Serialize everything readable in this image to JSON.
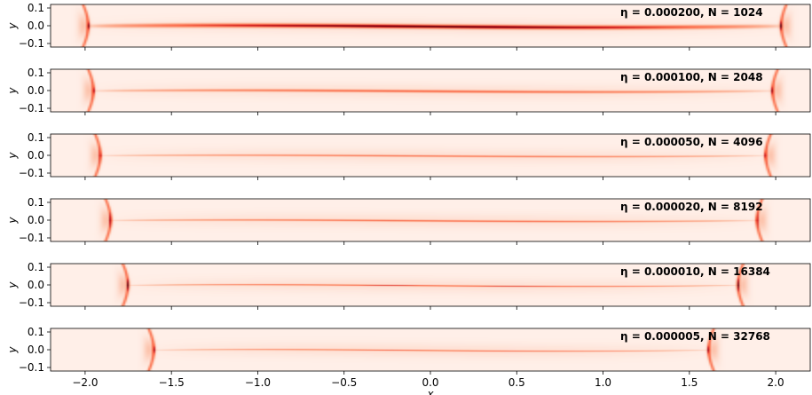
{
  "chart_data": {
    "type": "heatmap",
    "colormap": "Reds",
    "xlabel": "x",
    "ylabel": "y",
    "xlim": [
      -2.2,
      2.2
    ],
    "ylim": [
      -0.12,
      0.12
    ],
    "xticks": [
      -2.0,
      -1.5,
      -1.0,
      -0.5,
      0.0,
      0.5,
      1.0,
      1.5,
      2.0
    ],
    "xtick_labels": [
      "−2.0",
      "−1.5",
      "−1.0",
      "−0.5",
      "0.0",
      "0.5",
      "1.0",
      "1.5",
      "2.0"
    ],
    "yticks": [
      0.1,
      0.0,
      -0.1
    ],
    "ytick_labels": [
      "0.1",
      "0.0",
      "−0.1"
    ],
    "panels": [
      {
        "title": "η = 0.000200, N = 1024",
        "eta": 0.0002,
        "N": 1024,
        "front_x": [
          -2.0,
          2.05
        ],
        "line_amp": 0.014,
        "line_strength": 0.95,
        "line_width": 0.01
      },
      {
        "title": "η = 0.000100, N = 2048",
        "eta": 0.0001,
        "N": 2048,
        "front_x": [
          -1.97,
          2.0
        ],
        "line_amp": 0.012,
        "line_strength": 0.55,
        "line_width": 0.006
      },
      {
        "title": "η = 0.000050, N = 4096",
        "eta": 5e-05,
        "N": 4096,
        "front_x": [
          -1.93,
          1.96
        ],
        "line_amp": 0.01,
        "line_strength": 0.5,
        "line_width": 0.004
      },
      {
        "title": "η = 0.000020, N = 8192",
        "eta": 2e-05,
        "N": 8192,
        "front_x": [
          -1.87,
          1.91
        ],
        "line_amp": 0.011,
        "line_strength": 0.55,
        "line_width": 0.004
      },
      {
        "title": "η = 0.000010, N = 16384",
        "eta": 1e-05,
        "N": 16384,
        "front_x": [
          -1.77,
          1.8
        ],
        "line_amp": 0.012,
        "line_strength": 0.65,
        "line_width": 0.003
      },
      {
        "title": "η = 0.000005, N = 32768",
        "eta": 5e-06,
        "N": 32768,
        "front_x": [
          -1.62,
          1.63
        ],
        "line_amp": 0.012,
        "line_strength": 0.55,
        "line_width": 0.003
      }
    ]
  }
}
